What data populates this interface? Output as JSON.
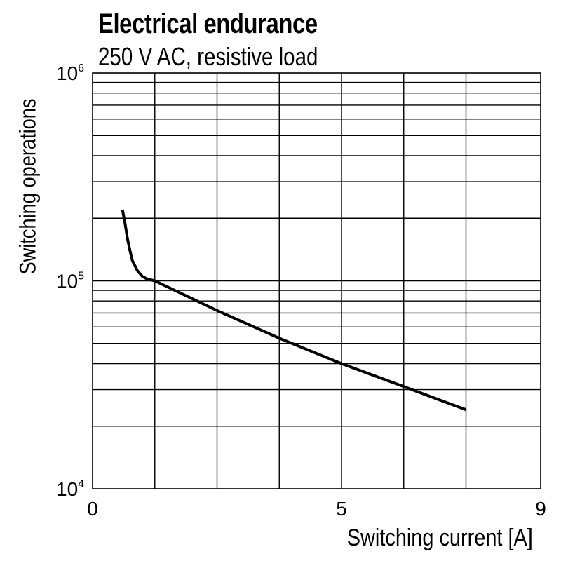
{
  "chart_data": {
    "type": "line",
    "title": "Electrical endurance",
    "subtitle": "250 V AC, resistive load",
    "xlabel": "Switching current [A]",
    "ylabel": "Switching operations",
    "xlim": [
      0,
      9
    ],
    "ylim": [
      10000,
      1000000
    ],
    "yscale": "log",
    "x_ticks": [
      {
        "value": 0,
        "label": "0"
      },
      {
        "value": 5,
        "label": "5"
      },
      {
        "value": 9,
        "label": "9"
      }
    ],
    "y_ticks": [
      {
        "value": 10000,
        "base": "10",
        "exp": "4"
      },
      {
        "value": 100000,
        "base": "10",
        "exp": "5"
      },
      {
        "value": 1000000,
        "base": "10",
        "exp": "6"
      }
    ],
    "x_grid": [
      1.25,
      2.5,
      3.75,
      5,
      6.25,
      7.5
    ],
    "grid": true,
    "series": [
      {
        "name": "250 V AC, resistive load",
        "x": [
          0.6,
          0.65,
          0.7,
          0.75,
          0.8,
          0.9,
          1.0,
          1.1,
          1.25,
          2.5,
          3.75,
          5.0,
          6.25,
          7.5
        ],
        "y": [
          220000,
          190000,
          160000,
          140000,
          125000,
          112000,
          105000,
          102000,
          100000,
          72000,
          53000,
          40000,
          31000,
          24000
        ]
      }
    ]
  }
}
